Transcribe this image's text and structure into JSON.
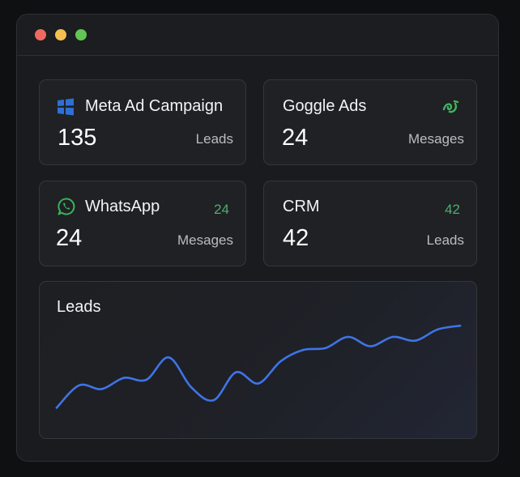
{
  "window": {
    "controls": [
      "close",
      "minimize",
      "maximize"
    ]
  },
  "cards": {
    "meta": {
      "title": "Meta Ad Campaign",
      "value": "135",
      "unit": "Leads",
      "icon": "meta-grid-icon"
    },
    "google": {
      "title": "Goggle Ads",
      "value": "24",
      "unit": "Mesages",
      "icon": "google-ads-icon"
    },
    "whatsapp": {
      "title": "WhatsApp",
      "badge": "24",
      "value": "24",
      "unit": "Mesages",
      "icon": "whatsapp-icon"
    },
    "crm": {
      "title": "CRM",
      "badge": "42",
      "value": "42",
      "unit": "Leads"
    }
  },
  "chart": {
    "title": "Leads"
  },
  "chart_data": {
    "type": "line",
    "title": "Leads",
    "xlabel": "",
    "ylabel": "",
    "grid": false,
    "x": [
      0,
      1,
      2,
      3,
      4,
      5,
      6,
      7,
      8,
      9,
      10,
      11,
      12,
      13,
      14,
      15,
      16,
      17,
      18
    ],
    "series": [
      {
        "values": [
          2,
          14,
          12,
          18,
          17,
          29,
          13,
          6,
          21,
          15,
          27,
          33,
          34,
          40,
          35,
          40,
          38,
          44,
          46
        ],
        "color": "#3f74e6"
      }
    ],
    "ylim": [
      0,
      50
    ]
  },
  "colors": {
    "background": "#0f1012",
    "window": "#1a1b1e",
    "card": "#202124",
    "accent_line": "#3f74e6",
    "badge_green": "#4caf73",
    "close": "#ee6a5f",
    "minimize": "#f5be4f",
    "maximize": "#61c554"
  }
}
